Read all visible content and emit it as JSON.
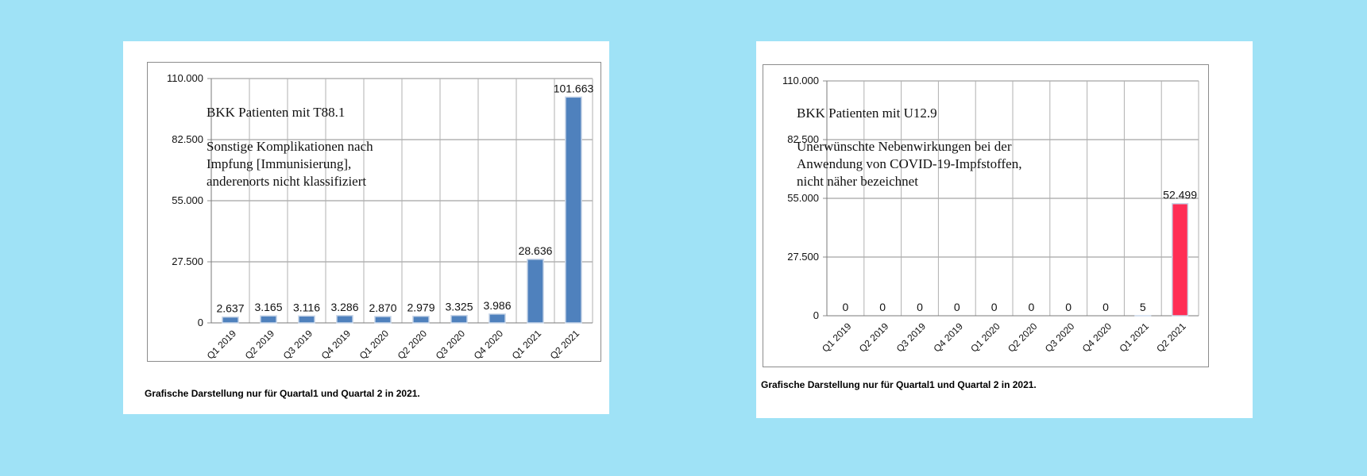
{
  "chart_data": [
    {
      "type": "bar",
      "title": "BKK Patienten mit T88.1",
      "subtitle_lines": [
        "Sonstige Komplikationen nach",
        "Impfung [Immunisierung],",
        "anderenorts nicht klassifiziert"
      ],
      "categories": [
        "Q1 2019",
        "Q2 2019",
        "Q3 2019",
        "Q4 2019",
        "Q1 2020",
        "Q2 2020",
        "Q3 2020",
        "Q4 2020",
        "Q1 2021",
        "Q2 2021"
      ],
      "values": [
        2637,
        3165,
        3116,
        3286,
        2870,
        2979,
        3325,
        3986,
        28636,
        101663
      ],
      "value_labels": [
        "2.637",
        "3.165",
        "3.116",
        "3.286",
        "2.870",
        "2.979",
        "3.325",
        "3.986",
        "28.636",
        "101.663"
      ],
      "yticks": [
        0,
        27500,
        55000,
        82500,
        110000
      ],
      "ytick_labels": [
        "0",
        "27.500",
        "55.000",
        "82.500",
        "110.000"
      ],
      "ylim": [
        0,
        110000
      ],
      "bar_colors": [
        "#4f81bd",
        "#4f81bd",
        "#4f81bd",
        "#4f81bd",
        "#4f81bd",
        "#4f81bd",
        "#4f81bd",
        "#4f81bd",
        "#4f81bd",
        "#4f81bd"
      ],
      "grid": true,
      "caption": "Grafische Darstellung nur für Quartal1 und Quartal 2 in 2021."
    },
    {
      "type": "bar",
      "title": "BKK Patienten mit U12.9",
      "subtitle_lines": [
        "Unerwünschte Nebenwirkungen bei der",
        "Anwendung von COVID-19-Impfstoffen,",
        "nicht näher bezeichnet"
      ],
      "categories": [
        "Q1 2019",
        "Q2 2019",
        "Q3 2019",
        "Q4 2019",
        "Q1 2020",
        "Q2 2020",
        "Q3 2020",
        "Q4 2020",
        "Q1 2021",
        "Q2 2021"
      ],
      "values": [
        0,
        0,
        0,
        0,
        0,
        0,
        0,
        0,
        5,
        52499
      ],
      "value_labels": [
        "0",
        "0",
        "0",
        "0",
        "0",
        "0",
        "0",
        "0",
        "5",
        "52.499"
      ],
      "yticks": [
        0,
        27500,
        55000,
        82500,
        110000
      ],
      "ytick_labels": [
        "0",
        "27.500",
        "55.000",
        "82.500",
        "110.000"
      ],
      "ylim": [
        0,
        110000
      ],
      "bar_colors": [
        "#4f81bd",
        "#4f81bd",
        "#4f81bd",
        "#4f81bd",
        "#4f81bd",
        "#4f81bd",
        "#4f81bd",
        "#4f81bd",
        "#4f81bd",
        "#ff2d55"
      ],
      "grid": true,
      "caption": "Grafische Darstellung nur für Quartal1 und Quartal 2 in 2021."
    }
  ]
}
